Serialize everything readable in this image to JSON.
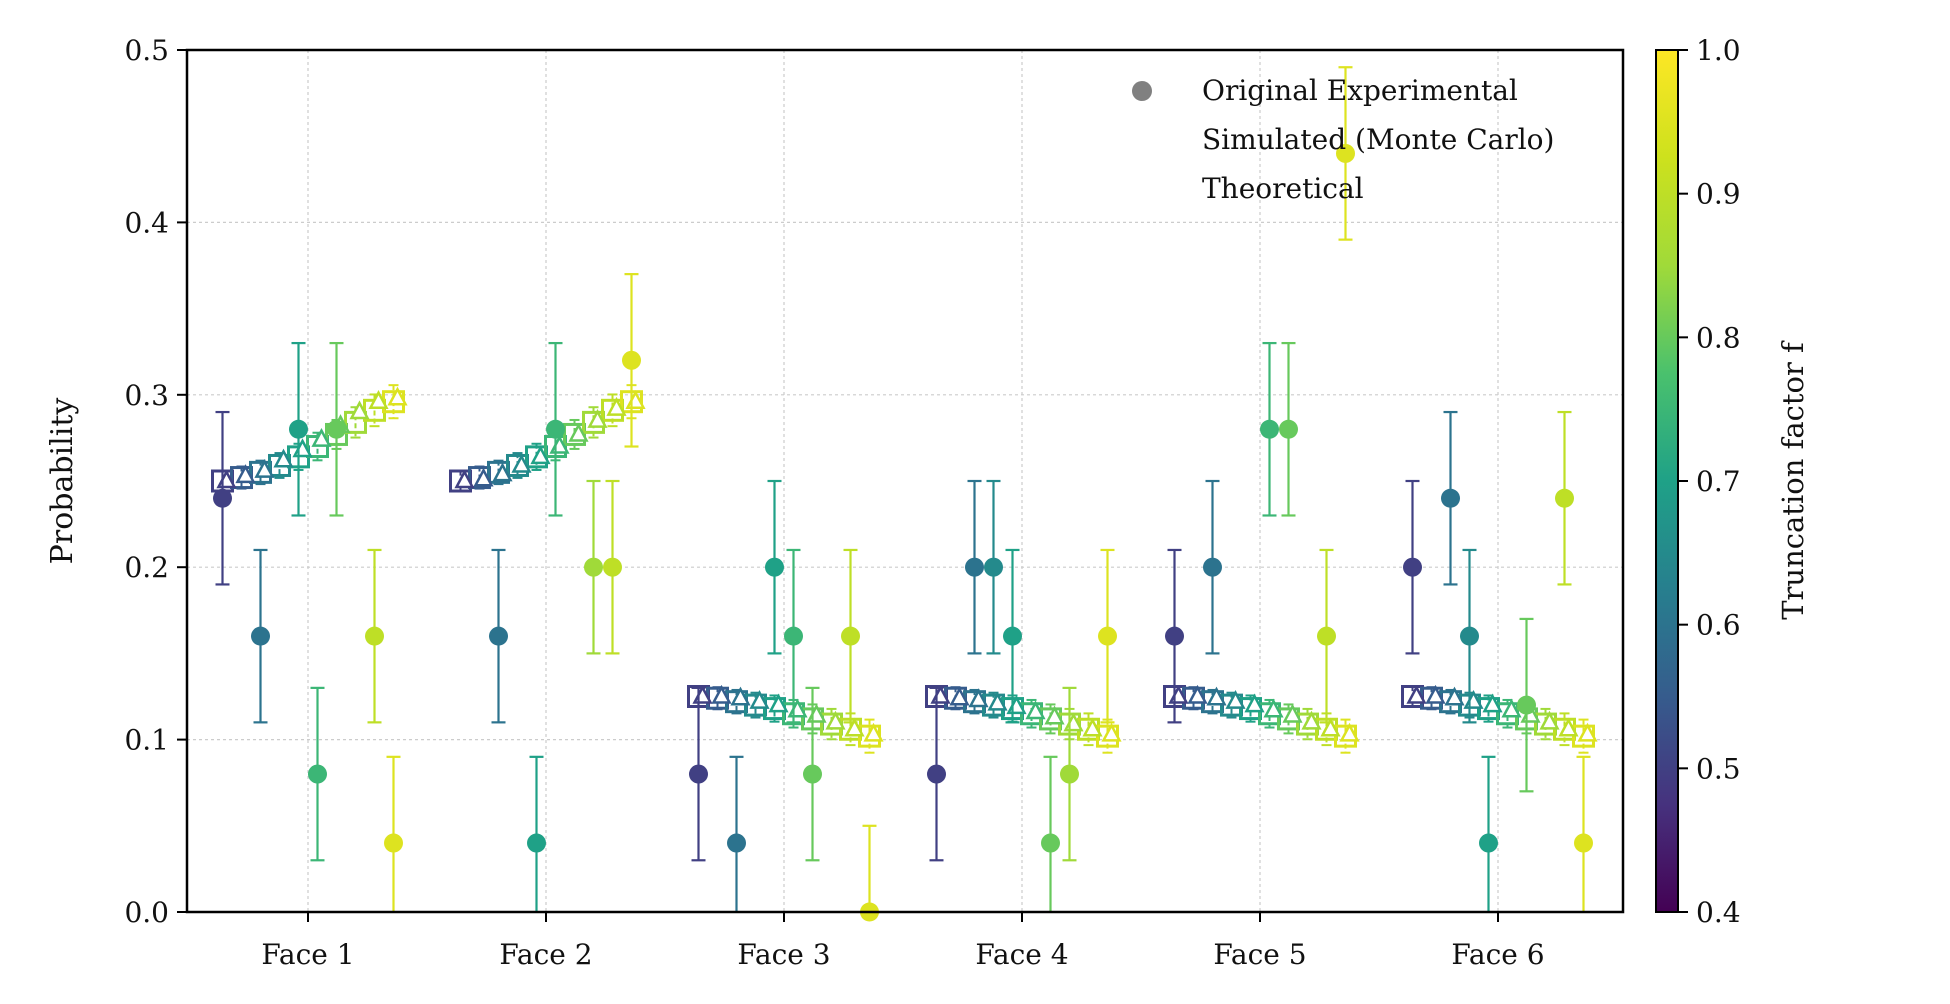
{
  "chart_data": {
    "type": "scatter",
    "categories": [
      "Face 1",
      "Face 2",
      "Face 3",
      "Face 4",
      "Face 5",
      "Face 6"
    ],
    "ylabel": "Probability",
    "ylim": [
      0,
      0.5
    ],
    "yticks": [
      "0.0",
      "0.1",
      "0.2",
      "0.3",
      "0.4",
      "0.5"
    ],
    "grid": true,
    "legend_position": "top-right",
    "legend": [
      {
        "label": "Original Experimental",
        "marker": "circle",
        "color": "#808080"
      },
      {
        "label": "Simulated (Monte Carlo)",
        "marker": "triangle",
        "color": "#808080"
      },
      {
        "label": "Theoretical",
        "marker": "square",
        "color": "#808080"
      }
    ],
    "colorbar": {
      "label": "Truncation factor f",
      "min": 0.4,
      "max": 1.0,
      "ticks": [
        "0.4",
        "0.5",
        "0.6",
        "0.7",
        "0.8",
        "0.9",
        "1.0"
      ],
      "colormap": "viridis"
    },
    "f_values": [
      0.5,
      0.55,
      0.6,
      0.65,
      0.7,
      0.75,
      0.8,
      0.85,
      0.9,
      0.95
    ],
    "series": [
      {
        "name": "Original Experimental",
        "marker": "circle",
        "values": [
          [
            0.24,
            0.16,
            0.28,
            0.08,
            0.28,
            0.16,
            0.04
          ],
          [
            0.16,
            0.04,
            0.28,
            0.2,
            0.2,
            0.32
          ],
          [
            0.08,
            0.04,
            0.2,
            0.16,
            0.08,
            0.16,
            0.0
          ],
          [
            0.08,
            0.2,
            0.2,
            0.16,
            0.04,
            0.08,
            0.16
          ],
          [
            0.16,
            0.2,
            0.28,
            0.28,
            0.16,
            0.44
          ],
          [
            0.2,
            0.24,
            0.16,
            0.04,
            0.12,
            0.24,
            0.04
          ]
        ],
        "f": [
          [
            0.5,
            0.6,
            0.7,
            0.75,
            0.8,
            0.9,
            0.95
          ],
          [
            0.6,
            0.7,
            0.75,
            0.85,
            0.9,
            0.95
          ],
          [
            0.5,
            0.6,
            0.7,
            0.75,
            0.8,
            0.9,
            0.95
          ],
          [
            0.5,
            0.6,
            0.65,
            0.7,
            0.8,
            0.85,
            0.95
          ],
          [
            0.5,
            0.6,
            0.75,
            0.8,
            0.9,
            0.95
          ],
          [
            0.5,
            0.6,
            0.65,
            0.7,
            0.8,
            0.9,
            0.95
          ]
        ],
        "err": 0.05
      },
      {
        "name": "Simulated (Monte Carlo)",
        "marker": "triangle",
        "values": [
          [
            0.25,
            0.253,
            0.256,
            0.262,
            0.268,
            0.274,
            0.282,
            0.29,
            0.296,
            0.298
          ],
          [
            0.25,
            0.251,
            0.254,
            0.259,
            0.264,
            0.27,
            0.277,
            0.285,
            0.292,
            0.296
          ],
          [
            0.125,
            0.125,
            0.124,
            0.122,
            0.12,
            0.117,
            0.114,
            0.11,
            0.106,
            0.103
          ],
          [
            0.125,
            0.124,
            0.123,
            0.121,
            0.119,
            0.116,
            0.113,
            0.109,
            0.106,
            0.103
          ],
          [
            0.125,
            0.125,
            0.124,
            0.122,
            0.12,
            0.117,
            0.114,
            0.11,
            0.106,
            0.103
          ],
          [
            0.125,
            0.125,
            0.124,
            0.122,
            0.12,
            0.117,
            0.114,
            0.11,
            0.106,
            0.103
          ]
        ]
      },
      {
        "name": "Theoretical",
        "marker": "square",
        "values": [
          [
            0.25,
            0.252,
            0.255,
            0.259,
            0.264,
            0.27,
            0.277,
            0.284,
            0.291,
            0.296
          ],
          [
            0.25,
            0.252,
            0.255,
            0.259,
            0.264,
            0.27,
            0.277,
            0.284,
            0.291,
            0.296
          ],
          [
            0.125,
            0.124,
            0.122,
            0.12,
            0.118,
            0.115,
            0.112,
            0.109,
            0.106,
            0.102
          ],
          [
            0.125,
            0.124,
            0.122,
            0.12,
            0.118,
            0.115,
            0.112,
            0.109,
            0.106,
            0.102
          ],
          [
            0.125,
            0.124,
            0.122,
            0.12,
            0.118,
            0.115,
            0.112,
            0.109,
            0.106,
            0.102
          ],
          [
            0.125,
            0.124,
            0.122,
            0.12,
            0.118,
            0.115,
            0.112,
            0.109,
            0.106,
            0.102
          ]
        ]
      }
    ]
  }
}
